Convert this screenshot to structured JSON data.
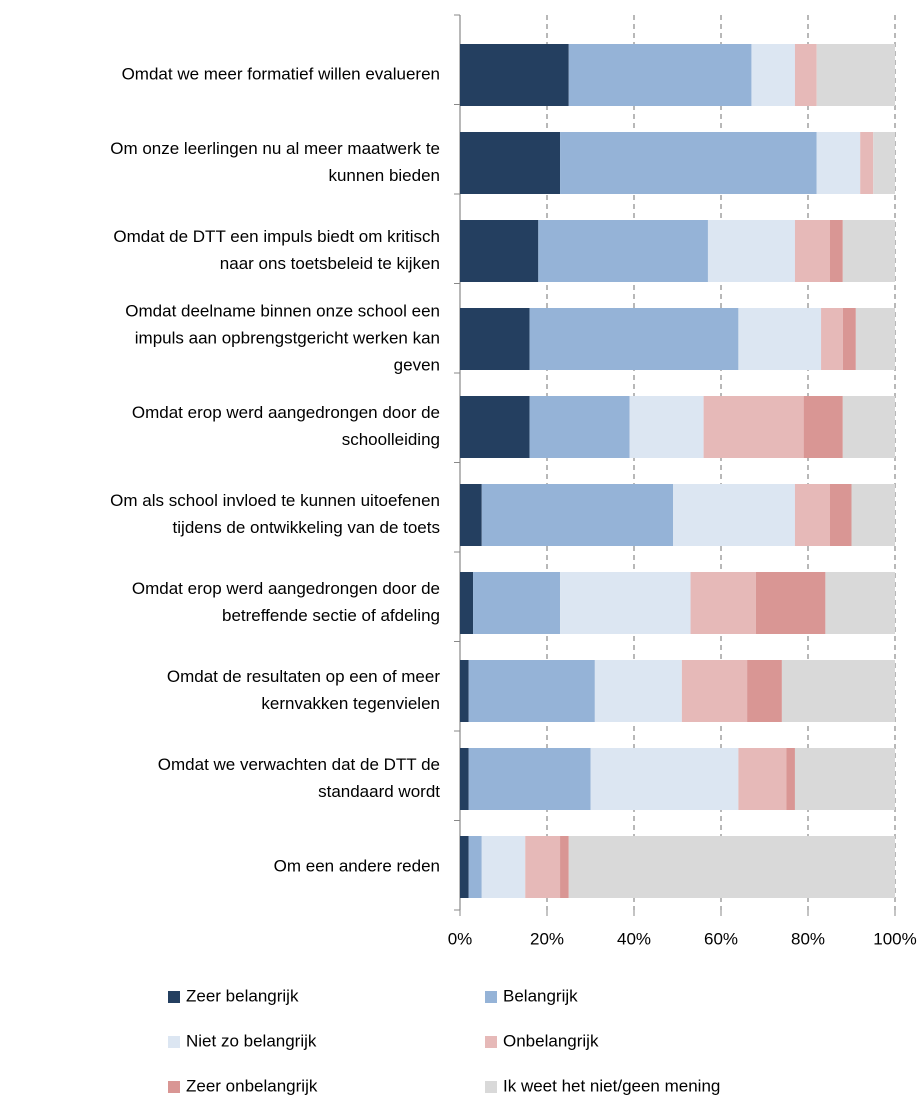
{
  "chart_data": {
    "type": "stacked_barh",
    "categories": [
      [
        "Omdat we meer formatief willen evalueren"
      ],
      [
        "Om onze leerlingen nu al meer maatwerk te",
        "kunnen bieden"
      ],
      [
        "Omdat de DTT een impuls biedt om kritisch",
        "naar ons toetsbeleid te kijken"
      ],
      [
        "Omdat deelname binnen onze school een",
        "impuls aan opbrengstgericht werken kan",
        "geven"
      ],
      [
        "Omdat erop werd aangedrongen door de",
        "schoolleiding"
      ],
      [
        "Om als school invloed te kunnen uitoefenen",
        "tijdens de ontwikkeling van de toets"
      ],
      [
        "Omdat erop werd aangedrongen door de",
        "betreffende sectie of afdeling"
      ],
      [
        "Omdat de resultaten op een of meer",
        "kernvakken tegenvielen"
      ],
      [
        "Omdat we verwachten dat de DTT de",
        "standaard wordt"
      ],
      [
        "Om een andere reden"
      ]
    ],
    "series": [
      {
        "name": "Zeer belangrijk",
        "color": "#243f60",
        "values": [
          25,
          23,
          18,
          16,
          16,
          5,
          3,
          2,
          2,
          2
        ]
      },
      {
        "name": "Belangrijk",
        "color": "#95b3d7",
        "values": [
          42,
          59,
          39,
          48,
          23,
          44,
          20,
          29,
          28,
          3
        ]
      },
      {
        "name": "Niet zo belangrijk",
        "color": "#dce6f2",
        "values": [
          10,
          10,
          20,
          19,
          17,
          28,
          30,
          20,
          34,
          10
        ]
      },
      {
        "name": "Onbelangrijk",
        "color": "#e6b9b8",
        "values": [
          5,
          3,
          8,
          5,
          23,
          8,
          15,
          15,
          11,
          8
        ]
      },
      {
        "name": "Zeer onbelangrijk",
        "color": "#d99694",
        "values": [
          0,
          0,
          3,
          3,
          9,
          5,
          16,
          8,
          2,
          2
        ]
      },
      {
        "name": "Ik weet het niet/geen mening",
        "color": "#d9d9d9",
        "values": [
          18,
          5,
          12,
          9,
          12,
          10,
          16,
          26,
          23,
          75
        ]
      }
    ],
    "xlim": [
      0,
      100
    ],
    "xticks": [
      {
        "value": 0,
        "label": "0%"
      },
      {
        "value": 20,
        "label": "20%"
      },
      {
        "value": 40,
        "label": "40%"
      },
      {
        "value": 60,
        "label": "60%"
      },
      {
        "value": 80,
        "label": "80%"
      },
      {
        "value": 100,
        "label": "100%"
      }
    ],
    "grid": true
  }
}
